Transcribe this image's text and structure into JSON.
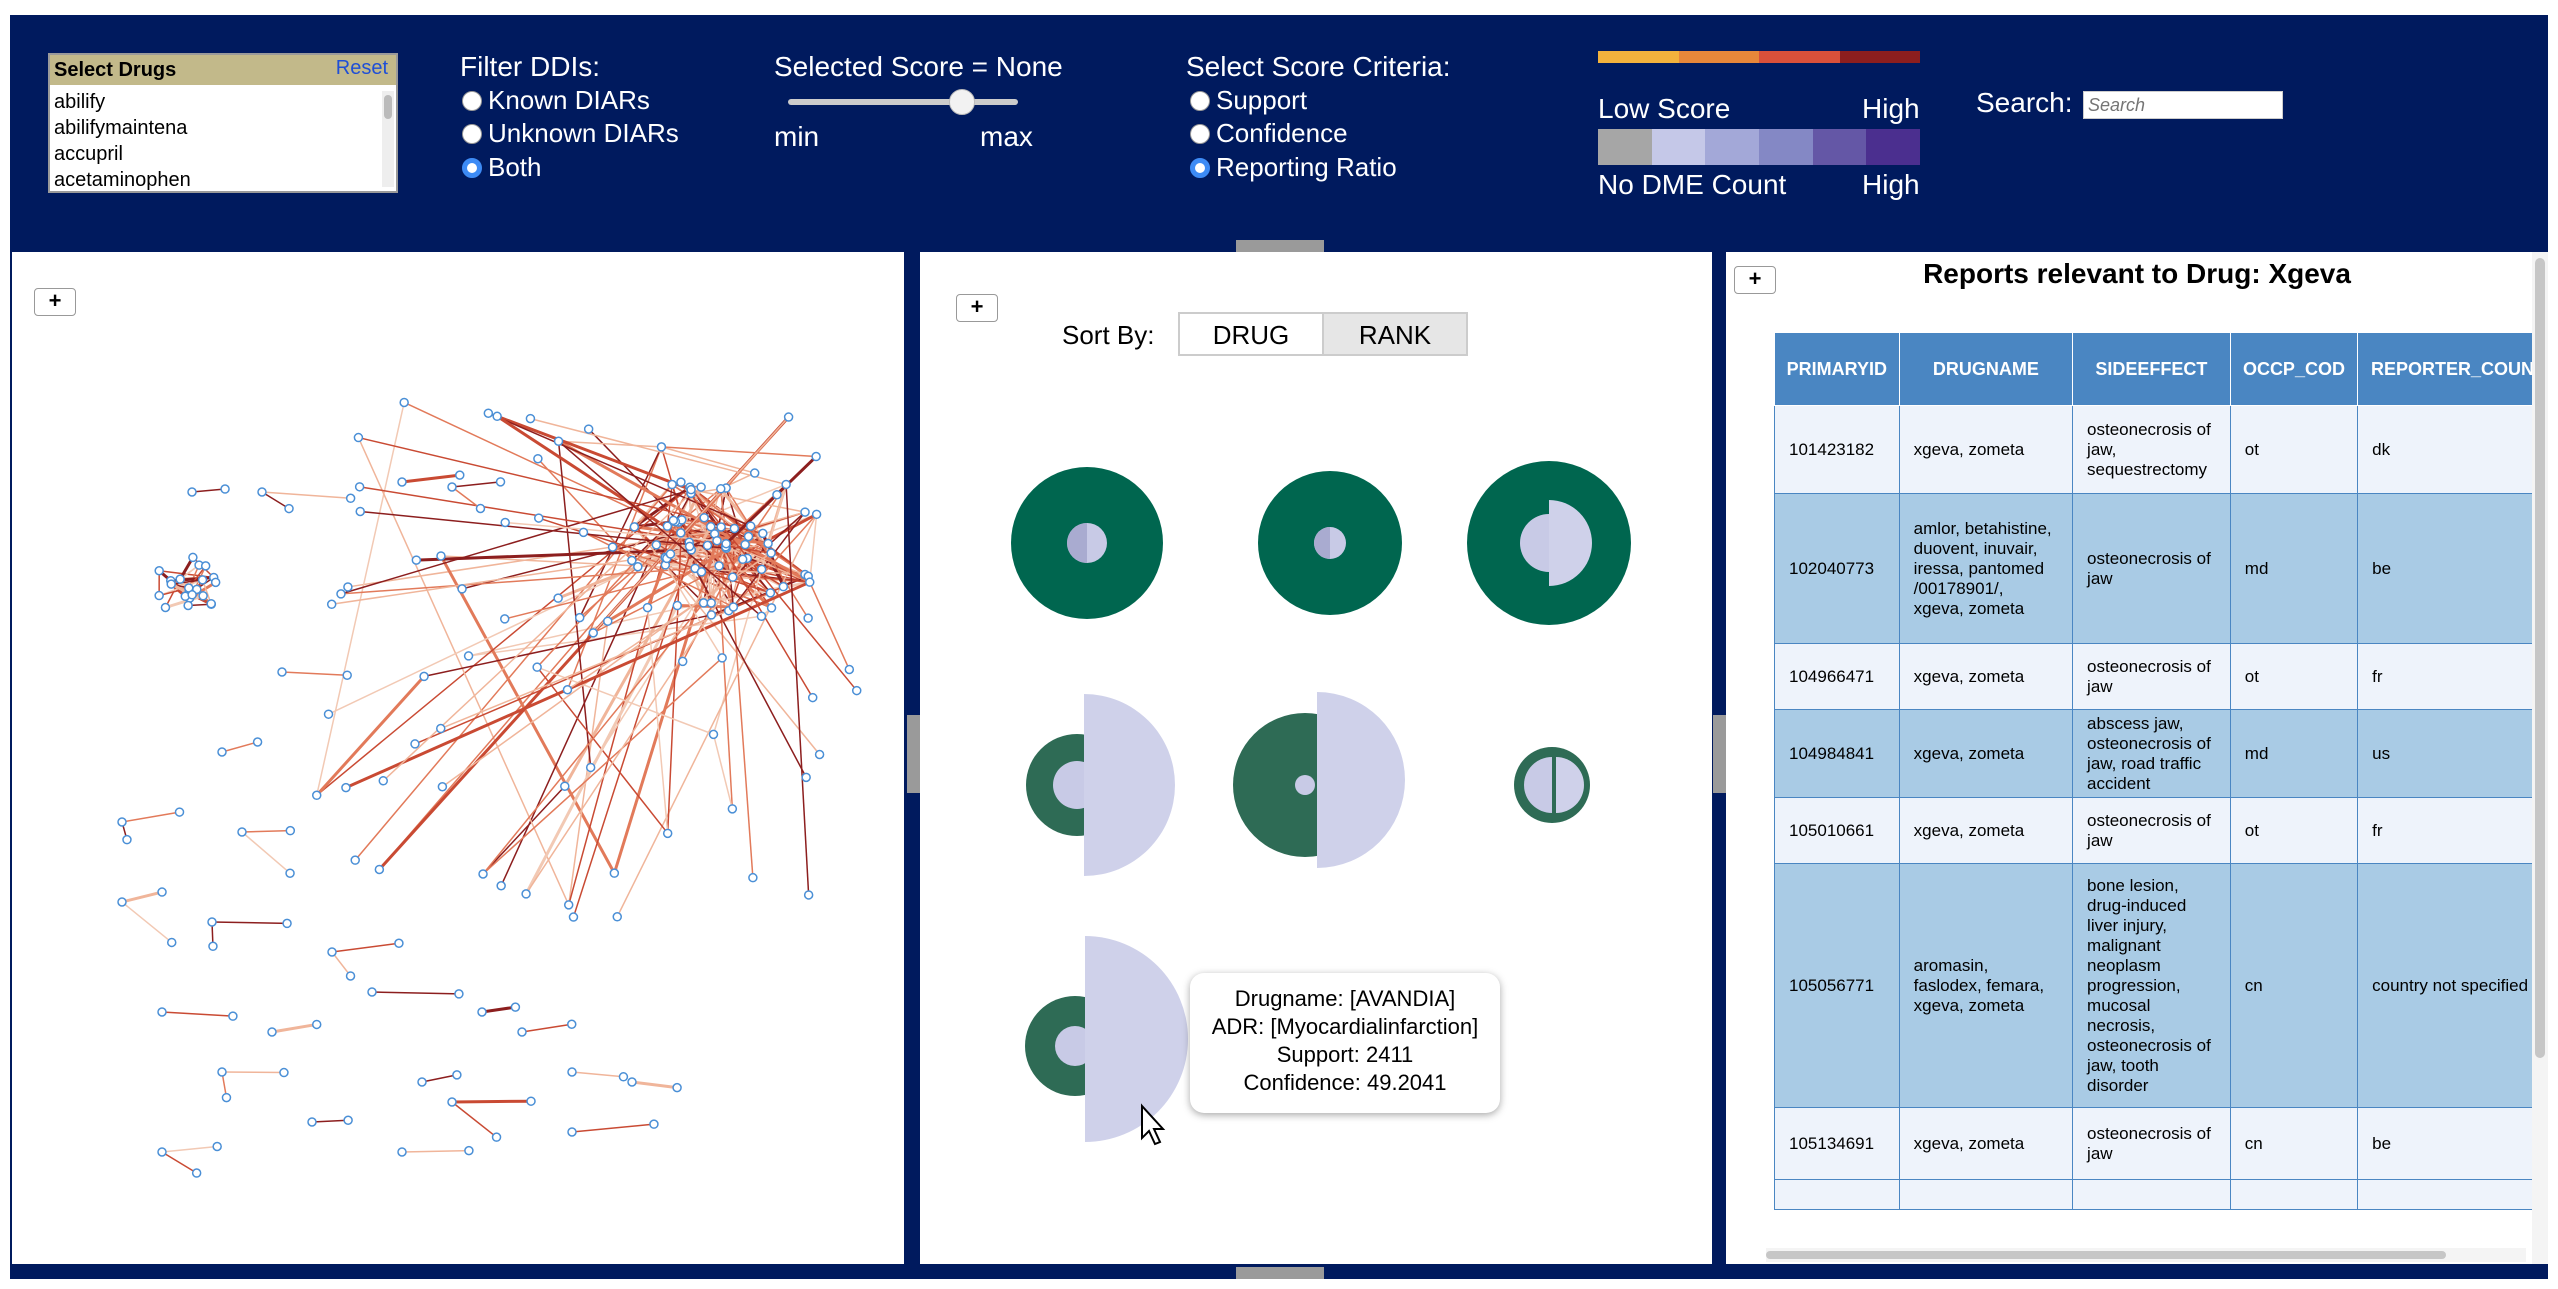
{
  "header": {
    "drug_select": {
      "title": "Select Drugs",
      "reset_label": "Reset",
      "drugs": [
        "abilify",
        "abilifymaintena",
        "accupril",
        "acetaminophen"
      ]
    },
    "filter": {
      "title": "Filter DDIs:",
      "options": [
        "Known DIARs",
        "Unknown DIARs",
        "Both"
      ],
      "selected": "Both"
    },
    "score": {
      "title": "Selected Score = None",
      "min_label": "min",
      "max_label": "max",
      "slider_fraction": 0.75
    },
    "criteria": {
      "title": "Select Score Criteria:",
      "options": [
        "Support",
        "Confidence",
        "Reporting Ratio"
      ],
      "selected": "Reporting Ratio"
    },
    "legend": {
      "score_low": "Low Score",
      "score_high": "High",
      "dme_low": "No DME Count",
      "dme_high": "High",
      "score_colors": [
        "#f2b23d",
        "#e7873a",
        "#d9503a",
        "#8c1e1e"
      ],
      "dme_colors": [
        "#a6a6a6",
        "#c5c8e8",
        "#a3a8d8",
        "#8488c5",
        "#6457a6",
        "#4b2f8f"
      ]
    },
    "search": {
      "label": "Search:",
      "placeholder": "Search"
    }
  },
  "network_panel": {
    "zoom_label": "+"
  },
  "glyph_panel": {
    "zoom_label": "+",
    "sort_label": "Sort By:",
    "sort_options": [
      "DRUG",
      "RANK"
    ],
    "selected_sort": "RANK",
    "tooltip": {
      "drugname": "Drugname: [AVANDIA]",
      "adr": "ADR: [Myocardialinfarction]",
      "support": "Support: 2411",
      "confidence": "Confidence: 49.2041"
    }
  },
  "reports_panel": {
    "zoom_label": "+",
    "title": "Reports relevant to Drug: Xgeva",
    "columns": [
      "PRIMARYID",
      "DRUGNAME",
      "SIDEEFFECT",
      "OCCP_COD",
      "REPORTER_COUN"
    ],
    "rows": [
      [
        "101423182",
        "xgeva, zometa",
        "osteonecrosis of jaw, sequestrectomy",
        "ot",
        "dk"
      ],
      [
        "102040773",
        "amlor, betahistine, duovent, inuvair, iressa, pantomed /00178901/, xgeva, zometa",
        "osteonecrosis of jaw",
        "md",
        "be"
      ],
      [
        "104966471",
        "xgeva, zometa",
        "osteonecrosis of jaw",
        "ot",
        "fr"
      ],
      [
        "104984841",
        "xgeva, zometa",
        "abscess jaw, osteonecrosis of jaw, road traffic accident",
        "md",
        "us"
      ],
      [
        "105010661",
        "xgeva, zometa",
        "osteonecrosis of jaw",
        "ot",
        "fr"
      ],
      [
        "105056771",
        "aromasin, faslodex, femara, xgeva, zometa",
        "bone lesion, drug-induced liver injury, malignant neoplasm progression, mucosal necrosis, osteonecrosis of jaw, tooth disorder",
        "cn",
        "country not specified"
      ],
      [
        "105134691",
        "xgeva, zometa",
        "osteonecrosis of jaw",
        "cn",
        "be"
      ]
    ]
  }
}
